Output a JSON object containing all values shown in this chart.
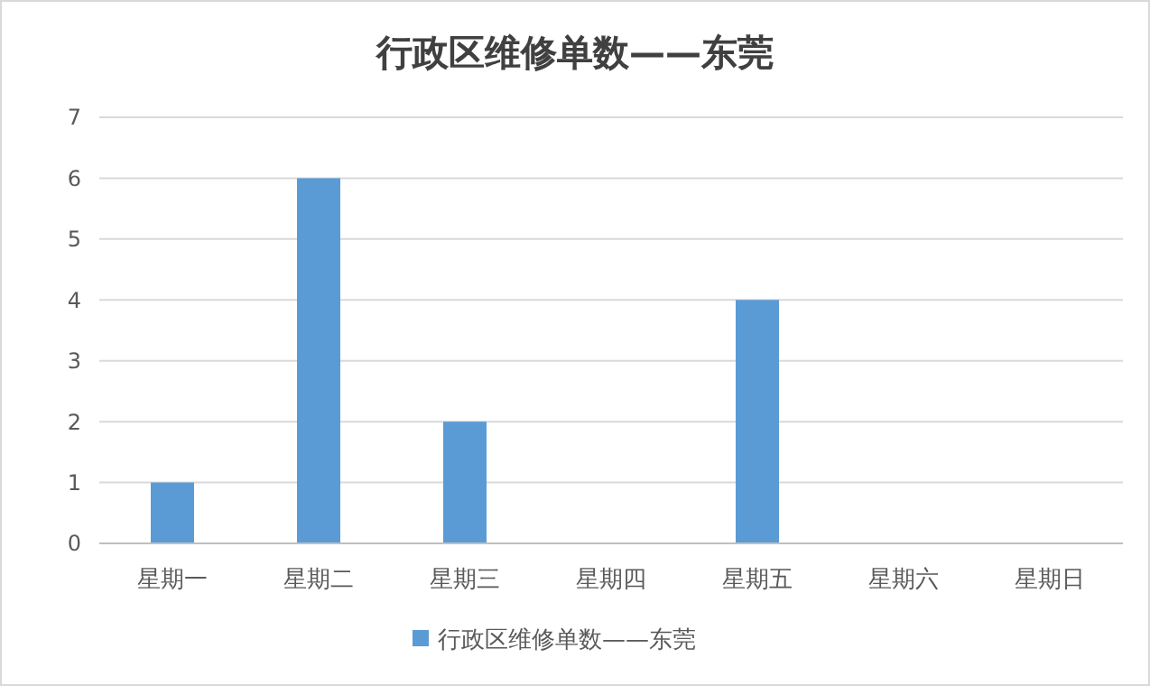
{
  "chart_data": {
    "type": "bar",
    "title": "行政区维修单数——东莞",
    "categories": [
      "星期一",
      "星期二",
      "星期三",
      "星期四",
      "星期五",
      "星期六",
      "星期日"
    ],
    "series": [
      {
        "name": "行政区维修单数——东莞",
        "color": "#5b9bd5",
        "values": [
          1,
          6,
          2,
          0,
          4,
          0,
          0
        ]
      }
    ],
    "ylim": [
      0,
      7
    ],
    "yticks": [
      0,
      1,
      2,
      3,
      4,
      5,
      6,
      7
    ],
    "grid": "y",
    "legend": "bottom"
  }
}
